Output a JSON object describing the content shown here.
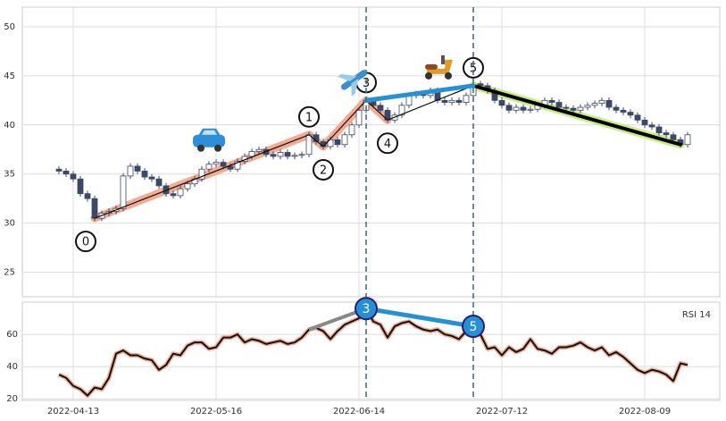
{
  "chart_data": [
    {
      "type": "candlestick",
      "categories": [
        null,
        null,
        "2022-04-13",
        null,
        null,
        null,
        null,
        null,
        null,
        null,
        null,
        null,
        null,
        null,
        null,
        null,
        null,
        null,
        null,
        null,
        null,
        null,
        "2022-05-16",
        null,
        null,
        null,
        null,
        null,
        null,
        null,
        null,
        null,
        null,
        null,
        null,
        null,
        null,
        null,
        null,
        null,
        null,
        null,
        "2022-06-14",
        null,
        null,
        null,
        null,
        null,
        null,
        null,
        null,
        null,
        null,
        null,
        null,
        null,
        null,
        null,
        null,
        null,
        null,
        null,
        "2022-07-12",
        null,
        null,
        null,
        null,
        null,
        null,
        null,
        null,
        null,
        null,
        null,
        null,
        null,
        null,
        null,
        null,
        null,
        null,
        null,
        "2022-08-09",
        null,
        null,
        null,
        null,
        null,
        null
      ],
      "open": [
        35.5,
        35.3,
        35.0,
        34.5,
        33.0,
        32.5,
        30.5,
        31.0,
        31.2,
        31.5,
        34.8,
        35.8,
        35.3,
        34.7,
        34.5,
        33.8,
        33.0,
        32.8,
        33.5,
        34.0,
        34.5,
        35.5,
        36.0,
        36.2,
        35.8,
        35.5,
        36.3,
        36.8,
        37.3,
        37.5,
        37.0,
        36.8,
        37.2,
        36.8,
        36.9,
        37.0,
        39.0,
        38.3,
        37.8,
        38.5,
        38.0,
        39.0,
        40.0,
        41.5,
        42.5,
        42.0,
        41.5,
        40.5,
        41.0,
        42.0,
        43.0,
        43.2,
        43.0,
        43.5,
        42.5,
        42.3,
        42.5,
        42.3,
        43.0,
        44.2,
        44.0,
        43.5,
        42.5,
        42.0,
        41.5,
        41.8,
        41.5,
        41.6,
        42.0,
        42.5,
        42.3,
        41.8,
        41.7,
        41.5,
        41.8,
        42.0,
        42.2,
        42.5,
        41.8,
        41.5,
        41.3,
        41.0,
        40.5,
        40.0,
        39.8,
        39.2,
        39.0,
        38.5,
        38.0
      ],
      "high": [
        35.8,
        35.6,
        35.3,
        34.8,
        33.3,
        32.8,
        31.3,
        31.5,
        31.8,
        35.1,
        36.1,
        36.1,
        35.6,
        35.0,
        34.8,
        34.1,
        33.3,
        33.8,
        34.3,
        34.8,
        35.8,
        36.3,
        36.5,
        36.5,
        36.1,
        36.6,
        37.1,
        37.6,
        37.8,
        37.8,
        37.3,
        37.5,
        37.5,
        37.2,
        37.3,
        39.3,
        39.3,
        38.6,
        38.8,
        38.8,
        39.3,
        40.3,
        41.8,
        42.8,
        42.8,
        42.3,
        41.8,
        41.3,
        42.3,
        43.3,
        43.5,
        43.5,
        43.8,
        43.8,
        42.8,
        42.8,
        42.8,
        43.3,
        44.3,
        44.5,
        44.3,
        43.8,
        42.8,
        42.3,
        42.1,
        42.1,
        41.9,
        42.3,
        42.8,
        42.8,
        42.6,
        42.1,
        42.0,
        42.1,
        42.3,
        42.5,
        42.8,
        42.8,
        42.1,
        41.8,
        41.6,
        41.3,
        40.8,
        40.3,
        40.1,
        39.5,
        39.3,
        38.8,
        39.3
      ],
      "low": [
        35.0,
        34.7,
        34.2,
        32.7,
        32.2,
        30.2,
        30.2,
        30.7,
        30.9,
        31.2,
        34.5,
        35.0,
        34.4,
        34.2,
        33.5,
        32.7,
        32.5,
        32.5,
        33.2,
        33.7,
        34.2,
        35.2,
        35.7,
        35.5,
        35.2,
        35.2,
        36.0,
        36.5,
        37.0,
        36.7,
        36.5,
        36.5,
        36.5,
        36.5,
        36.6,
        36.7,
        38.0,
        37.5,
        37.5,
        37.7,
        37.7,
        38.7,
        39.7,
        41.2,
        41.7,
        41.2,
        40.2,
        40.2,
        40.7,
        41.7,
        42.7,
        42.7,
        42.7,
        42.2,
        42.0,
        42.0,
        42.0,
        42.0,
        42.7,
        43.7,
        43.2,
        42.2,
        41.7,
        41.2,
        41.2,
        41.2,
        41.2,
        41.3,
        41.7,
        42.0,
        41.5,
        41.4,
        41.2,
        41.2,
        41.5,
        41.7,
        41.9,
        41.5,
        41.2,
        41.0,
        40.7,
        40.2,
        39.7,
        39.5,
        38.9,
        38.7,
        38.2,
        37.7,
        37.7
      ],
      "close": [
        35.3,
        35.0,
        34.5,
        33.0,
        32.5,
        30.5,
        31.0,
        31.2,
        31.5,
        34.8,
        35.8,
        35.3,
        34.7,
        34.5,
        33.8,
        33.0,
        32.8,
        33.5,
        34.0,
        34.5,
        35.5,
        36.0,
        36.2,
        35.8,
        35.5,
        36.3,
        36.8,
        37.3,
        37.5,
        37.0,
        36.8,
        37.2,
        36.8,
        36.9,
        37.0,
        39.0,
        38.3,
        37.8,
        38.5,
        38.0,
        39.0,
        40.0,
        41.5,
        42.5,
        42.0,
        41.5,
        40.5,
        41.0,
        42.0,
        43.0,
        43.2,
        43.0,
        43.5,
        42.5,
        42.3,
        42.5,
        42.3,
        43.0,
        44.0,
        44.0,
        43.5,
        42.5,
        42.0,
        41.5,
        41.8,
        41.5,
        41.6,
        42.0,
        42.5,
        42.3,
        41.8,
        41.7,
        41.5,
        41.8,
        42.0,
        42.2,
        42.5,
        41.8,
        41.5,
        41.3,
        41.0,
        40.5,
        40.0,
        39.8,
        39.2,
        39.0,
        38.5,
        38.0,
        39.0
      ],
      "up_color": "#ffffff",
      "down_color": "#3b4868",
      "ylim": [
        22.5,
        52
      ],
      "yticks": [
        25,
        30,
        35,
        40,
        45,
        50
      ],
      "grid": true,
      "pivots": [
        {
          "label": "0",
          "x": 5,
          "value": 30.5
        },
        {
          "label": "1",
          "x": 35,
          "value": 39.0
        },
        {
          "label": "2",
          "x": 37,
          "value": 37.8
        },
        {
          "label": "3",
          "x": 43,
          "value": 42.5
        },
        {
          "label": "4",
          "x": 46,
          "value": 40.5
        },
        {
          "label": "5",
          "x": 58,
          "value": 44.0
        }
      ],
      "trend_colors": {
        "up": "#f4ab91",
        "divergence": "#2590d4",
        "down": "#c6ee84"
      }
    },
    {
      "type": "line",
      "series": [
        {
          "name": "RSI 14",
          "color": "#111111",
          "halo": "#f4ab91",
          "values": [
            35,
            33,
            28,
            26,
            22,
            27,
            26,
            33,
            48,
            50,
            47,
            47,
            45,
            44,
            38,
            41,
            48,
            47,
            53,
            55,
            55,
            51,
            52,
            58,
            58,
            60,
            55,
            57,
            56,
            54,
            55,
            56,
            54,
            55,
            58,
            63,
            64,
            62,
            57,
            62,
            66,
            68,
            70,
            76,
            68,
            66,
            58,
            65,
            67,
            68,
            65,
            63,
            62,
            63,
            60,
            59,
            57,
            62,
            65,
            60,
            51,
            52,
            47,
            52,
            49,
            51,
            57,
            51,
            50,
            48,
            52,
            52,
            53,
            55,
            52,
            50,
            52,
            47,
            49,
            46,
            42,
            38,
            36,
            38,
            37,
            35,
            31,
            42,
            41
          ]
        }
      ],
      "ylim": [
        19,
        80
      ],
      "yticks": [
        20,
        40,
        60
      ],
      "grid": true,
      "divergence_color": "#2590d4",
      "prior_color": "#888888"
    }
  ]
}
